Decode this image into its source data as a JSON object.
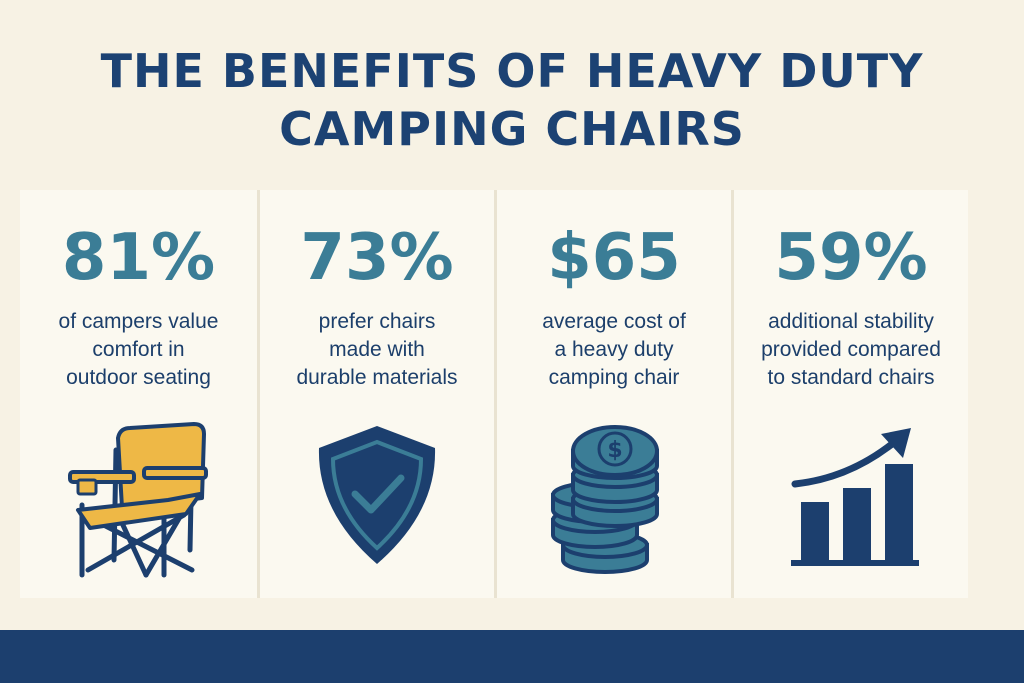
{
  "title": {
    "line1": "THE BENEFITS OF HEAVY DUTY",
    "line2": "CAMPING CHAIRS"
  },
  "cards": [
    {
      "stat": "81%",
      "lines": [
        "of campers value",
        "comfort in",
        "outdoor seating"
      ],
      "icon": "camping-chair-icon"
    },
    {
      "stat": "73%",
      "lines": [
        "prefer chairs",
        "made with",
        "durable materials"
      ],
      "icon": "shield-check-icon"
    },
    {
      "stat": "$65",
      "lines": [
        "average cost of",
        "a heavy duty",
        "camping chair"
      ],
      "icon": "coin-stack-icon",
      "icon_symbol": "$"
    },
    {
      "stat": "59%",
      "lines": [
        "additional stability",
        "provided compared",
        "to standard chairs"
      ],
      "icon": "growth-chart-icon"
    }
  ],
  "colors": {
    "background": "#f7f2e4",
    "card": "#fbf9f0",
    "navy": "#1c3f6e",
    "teal": "#3b7d96",
    "chair_yellow": "#eeb846"
  }
}
